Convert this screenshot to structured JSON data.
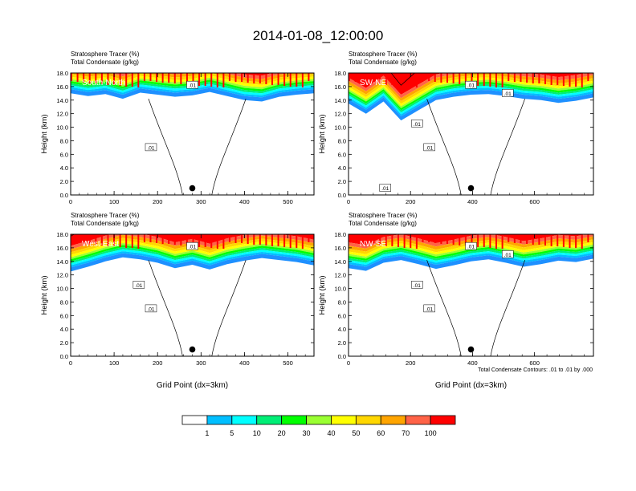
{
  "title": "2014-01-08_12:00:00",
  "chart_data": [
    {
      "type": "heatmap",
      "panel_label": "South-North",
      "titles": [
        "Stratosphere Tracer   (%)",
        "Total Condensate   (g/kg)"
      ],
      "ylabel": "Height (km)",
      "xlabel": "",
      "xlim": [
        0,
        560
      ],
      "ylim": [
        0,
        18
      ],
      "xticks": [
        "0",
        "100",
        "200",
        "300",
        "400",
        "500"
      ],
      "xtick_values": [
        0,
        100,
        200,
        300,
        400,
        500
      ],
      "yticks": [
        "0.0",
        "2.0",
        "4.0",
        "6.0",
        "8.0",
        "10.0",
        "12.0",
        "14.0",
        "16.0",
        "18.0"
      ],
      "tracer_base_km": [
        15.0,
        14.6,
        14.9,
        14.2,
        15.1,
        14.8,
        14.5,
        14.7,
        15.2,
        14.6,
        14.0,
        13.8,
        14.5,
        14.8,
        15.0
      ],
      "contour_labels": [
        ".01",
        ".01"
      ],
      "marker": {
        "x": 280,
        "y": 1.0
      }
    },
    {
      "type": "heatmap",
      "panel_label": "SW-NE",
      "titles": [
        "Stratosphere Tracer   (%)",
        "Total Condensate   (g/kg)"
      ],
      "ylabel": "Height (km)",
      "xlabel": "",
      "xlim": [
        0,
        790
      ],
      "ylim": [
        0,
        18
      ],
      "xticks": [
        "0",
        "200",
        "400",
        "600"
      ],
      "xtick_values": [
        0,
        200,
        400,
        600
      ],
      "yticks": [
        "0.0",
        "2.0",
        "4.0",
        "6.0",
        "8.0",
        "10.0",
        "12.0",
        "14.0",
        "16.0",
        "18.0"
      ],
      "tracer_base_km": [
        13.5,
        12.0,
        13.8,
        11.0,
        12.5,
        14.0,
        14.5,
        14.8,
        14.9,
        14.6,
        14.2,
        14.0,
        13.6,
        13.9,
        14.4
      ],
      "contour_labels": [
        ".01",
        ".01",
        ".01",
        ".01",
        ".01"
      ],
      "marker": {
        "x": 395,
        "y": 1.0
      }
    },
    {
      "type": "heatmap",
      "panel_label": "West-East",
      "titles": [
        "Stratosphere Tracer   (%)",
        "Total Condensate   (g/kg)"
      ],
      "ylabel": "Height (km)",
      "xlabel": "Grid Point (dx=3km)",
      "xlim": [
        0,
        560
      ],
      "ylim": [
        0,
        18
      ],
      "xticks": [
        "0",
        "100",
        "200",
        "300",
        "400",
        "500"
      ],
      "xtick_values": [
        0,
        100,
        200,
        300,
        400,
        500
      ],
      "yticks": [
        "0.0",
        "2.0",
        "4.0",
        "6.0",
        "8.0",
        "10.0",
        "12.0",
        "14.0",
        "16.0",
        "18.0"
      ],
      "tracer_base_km": [
        12.5,
        13.2,
        14.0,
        14.6,
        14.3,
        13.8,
        13.0,
        13.5,
        12.8,
        13.6,
        14.1,
        14.5,
        14.2,
        13.9,
        13.4
      ],
      "contour_labels": [
        ".01",
        ".01",
        ".01"
      ],
      "marker": {
        "x": 280,
        "y": 1.0
      }
    },
    {
      "type": "heatmap",
      "panel_label": "NW-SE",
      "titles": [
        "Stratosphere Tracer   (%)",
        "Total Condensate   (g/kg)"
      ],
      "ylabel": "Height (km)",
      "xlabel": "Grid Point (dx=3km)",
      "xlim": [
        0,
        790
      ],
      "ylim": [
        0,
        18
      ],
      "xticks": [
        "0",
        "200",
        "400",
        "600"
      ],
      "xtick_values": [
        0,
        200,
        400,
        600
      ],
      "yticks": [
        "0.0",
        "2.0",
        "4.0",
        "6.0",
        "8.0",
        "10.0",
        "12.0",
        "14.0",
        "16.0",
        "18.0"
      ],
      "tracer_base_km": [
        13.0,
        12.6,
        13.8,
        14.2,
        13.6,
        12.9,
        13.4,
        14.0,
        14.3,
        13.8,
        13.2,
        13.6,
        14.1,
        13.9,
        14.4
      ],
      "contour_labels": [
        ".01",
        ".01",
        ".01",
        ".01"
      ],
      "marker": {
        "x": 395,
        "y": 1.0
      }
    }
  ],
  "contour_note": "Total Condensate Contours: .01 to .01 by .000",
  "colorbar": {
    "labels": [
      "1",
      "5",
      "10",
      "20",
      "30",
      "40",
      "50",
      "60",
      "70",
      "100"
    ],
    "colors": [
      "#ffffff",
      "#1e90ff",
      "#00bfff",
      "#00ffff",
      "#00ee76",
      "#00ff00",
      "#9aff32",
      "#ffff00",
      "#ffd700",
      "#ffa500",
      "#ff6347",
      "#ff0000"
    ]
  }
}
